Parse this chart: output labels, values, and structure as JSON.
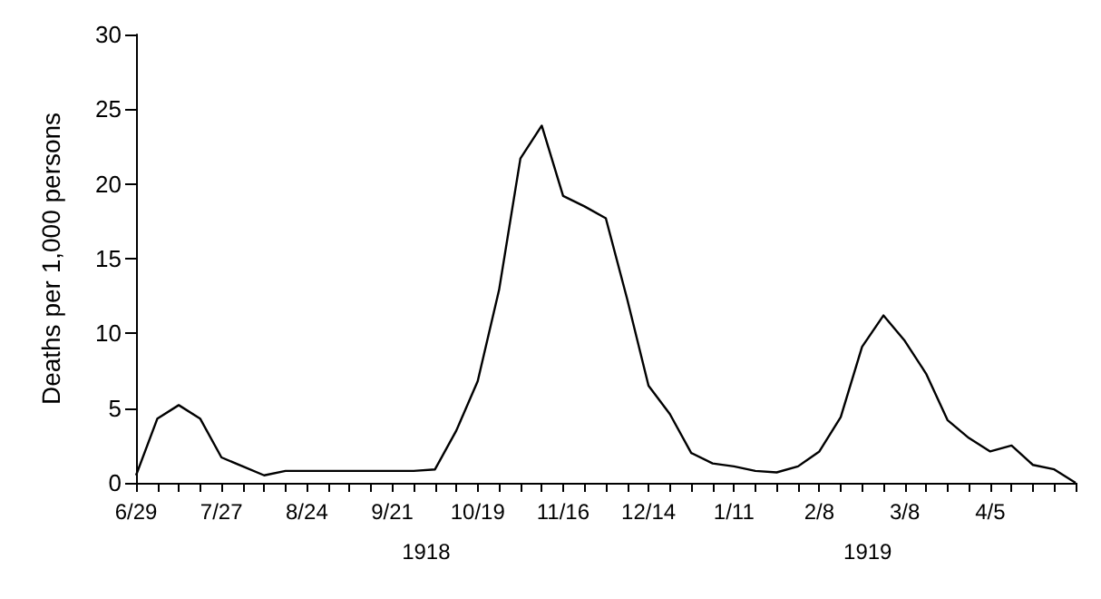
{
  "chart_data": {
    "type": "line",
    "ylabel": "Deaths per 1,000 persons",
    "categories": [
      "6/29",
      null,
      null,
      null,
      "7/27",
      null,
      null,
      null,
      "8/24",
      null,
      null,
      null,
      "9/21",
      null,
      null,
      null,
      "10/19",
      null,
      null,
      null,
      "11/16",
      null,
      null,
      null,
      "12/14",
      null,
      null,
      null,
      "1/11",
      null,
      null,
      null,
      "2/8",
      null,
      null,
      null,
      "3/8",
      null,
      null,
      null,
      "4/5",
      null,
      null,
      null,
      null
    ],
    "series": [
      {
        "color": "#000000",
        "values": [
          0.5,
          4.3,
          5.2,
          4.3,
          1.7,
          1.1,
          0.5,
          0.8,
          0.8,
          0.8,
          0.8,
          0.8,
          0.8,
          0.8,
          0.9,
          3.5,
          6.8,
          12.9,
          21.7,
          23.9,
          19.2,
          18.5,
          17.7,
          12.3,
          6.5,
          4.6,
          2.0,
          1.3,
          1.1,
          0.8,
          0.7,
          1.1,
          2.1,
          4.4,
          9.1,
          11.2,
          9.5,
          7.3,
          4.2,
          3.0,
          2.1,
          2.5,
          1.2,
          0.9,
          0
        ]
      }
    ],
    "ylim": [
      0,
      30
    ],
    "yticks": [
      0,
      5,
      10,
      15,
      20,
      25,
      30
    ],
    "grid": false,
    "marker": "none",
    "line_style": "solid",
    "annotations": [
      "1918",
      "1919"
    ]
  }
}
